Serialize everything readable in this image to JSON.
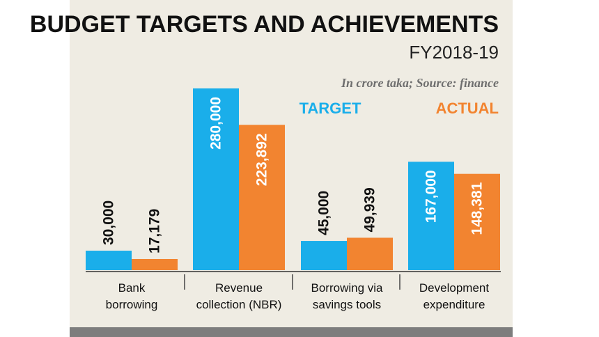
{
  "colors": {
    "target": "#1aaeea",
    "actual": "#f28430",
    "background": "#efece3",
    "footer_bar": "#7d7d7d"
  },
  "chart_data": {
    "type": "bar",
    "title": "BUDGET TARGETS AND ACHIEVEMENTS",
    "subtitle": "FY2018-19",
    "source_note": "In crore taka; Source: finance",
    "unit": "crore taka",
    "categories": [
      [
        "Bank",
        "borrowing"
      ],
      [
        "Revenue",
        "collection (NBR)"
      ],
      [
        "Borrowing via",
        "savings tools"
      ],
      [
        "Development",
        "expenditure"
      ]
    ],
    "series": [
      {
        "name": "TARGET",
        "color": "#1aaeea",
        "values": [
          30000,
          280000,
          45000,
          167000
        ],
        "labels": [
          "30,000",
          "280,000",
          "45,000",
          "167,000"
        ]
      },
      {
        "name": "ACTUAL",
        "color": "#f28430",
        "values": [
          17179,
          223892,
          49939,
          148381
        ],
        "labels": [
          "17,179",
          "223,892",
          "49,939",
          "148,381"
        ]
      }
    ],
    "ylim": [
      0,
      280000
    ],
    "legend_position": "top-right",
    "grid": false
  }
}
